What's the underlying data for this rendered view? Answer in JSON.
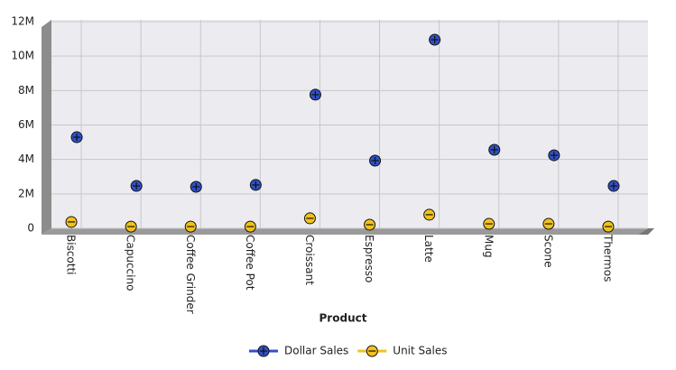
{
  "chart_data": {
    "type": "scatter",
    "x_label": "Product",
    "categories": [
      "Biscotti",
      "Capuccino",
      "Coffee Grinder",
      "Coffee Pot",
      "Croissant",
      "Espresso",
      "Latte",
      "Mug",
      "Scone",
      "Thermos"
    ],
    "series": [
      {
        "name": "Dollar Sales",
        "color": "#2f50c8",
        "marker": "plus",
        "values": [
          5290000,
          2460000,
          2410000,
          2520000,
          7760000,
          3930000,
          10950000,
          4560000,
          4240000,
          2460000
        ]
      },
      {
        "name": "Unit Sales",
        "color": "#f2c21b",
        "marker": "minus",
        "values": [
          370000,
          100000,
          100000,
          100000,
          580000,
          210000,
          790000,
          260000,
          260000,
          100000
        ]
      }
    ],
    "ylim": [
      0,
      12000000
    ],
    "yticks": [
      0,
      {
        "value": 2000000,
        "label": "2M"
      },
      {
        "value": 4000000,
        "label": "4M"
      },
      {
        "value": 6000000,
        "label": "6M"
      },
      {
        "value": 8000000,
        "label": "8M"
      },
      {
        "value": 10000000,
        "label": "10M"
      },
      {
        "value": 12000000,
        "label": "12M"
      }
    ],
    "grid": true,
    "legend": "bottom"
  }
}
